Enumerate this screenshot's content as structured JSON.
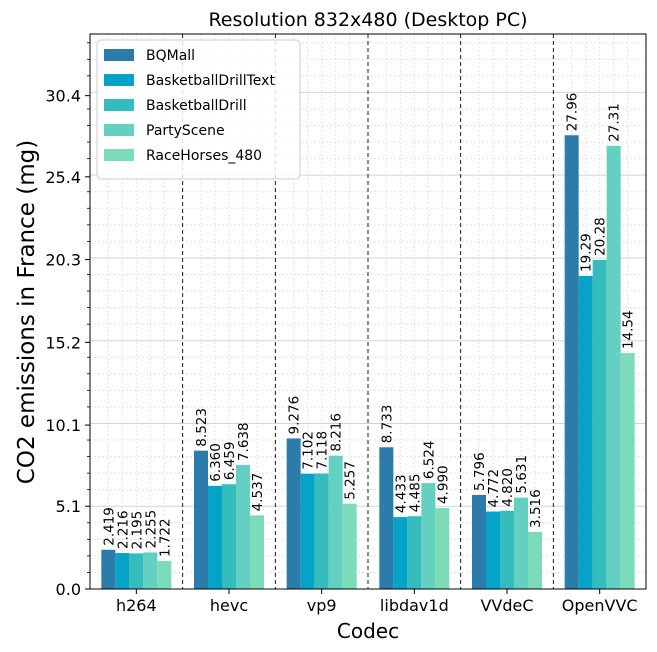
{
  "chart_data": {
    "type": "bar",
    "title": "Resolution 832x480 (Desktop PC)",
    "xlabel": "Codec",
    "ylabel": "CO2 emissions in France (mg)",
    "categories": [
      "h264",
      "hevc",
      "vp9",
      "libdav1d",
      "VVdeC",
      "OpenVVC"
    ],
    "ylim": [
      0,
      34.2
    ],
    "yticks": [
      "0.0",
      "5.1",
      "10.1",
      "15.2",
      "20.3",
      "25.4",
      "30.4"
    ],
    "ytick_values": [
      0.0,
      5.1,
      10.1,
      15.2,
      20.3,
      25.4,
      30.4
    ],
    "grid": "on",
    "legend_position": "top-left",
    "series": [
      {
        "name": "BQMall",
        "color": "#2b7bab",
        "values": [
          2.419,
          8.523,
          9.276,
          8.733,
          5.796,
          27.96
        ],
        "labels": [
          "2.419",
          "8.523",
          "9.276",
          "8.733",
          "5.796",
          "27.96"
        ]
      },
      {
        "name": "BasketballDrillText",
        "color": "#06a3c8",
        "values": [
          2.216,
          6.36,
          7.102,
          4.433,
          4.772,
          19.29
        ],
        "labels": [
          "2.216",
          "6.360",
          "7.102",
          "4.433",
          "4.772",
          "19.29"
        ]
      },
      {
        "name": "BasketballDrill",
        "color": "#35bdbd",
        "values": [
          2.195,
          6.459,
          7.118,
          4.485,
          4.82,
          20.28
        ],
        "labels": [
          "2.195",
          "6.459",
          "7.118",
          "4.485",
          "4.820",
          "20.28"
        ]
      },
      {
        "name": "PartyScene",
        "color": "#64d0c2",
        "values": [
          2.255,
          7.638,
          8.216,
          6.524,
          5.631,
          27.31
        ],
        "labels": [
          "2.255",
          "7.638",
          "8.216",
          "6.524",
          "5.631",
          "27.31"
        ]
      },
      {
        "name": "RaceHorses_480",
        "color": "#7ddcb8",
        "values": [
          1.722,
          4.537,
          5.257,
          4.99,
          3.516,
          14.54
        ],
        "labels": [
          "1.722",
          "4.537",
          "5.257",
          "4.990",
          "3.516",
          "14.54"
        ]
      }
    ]
  }
}
